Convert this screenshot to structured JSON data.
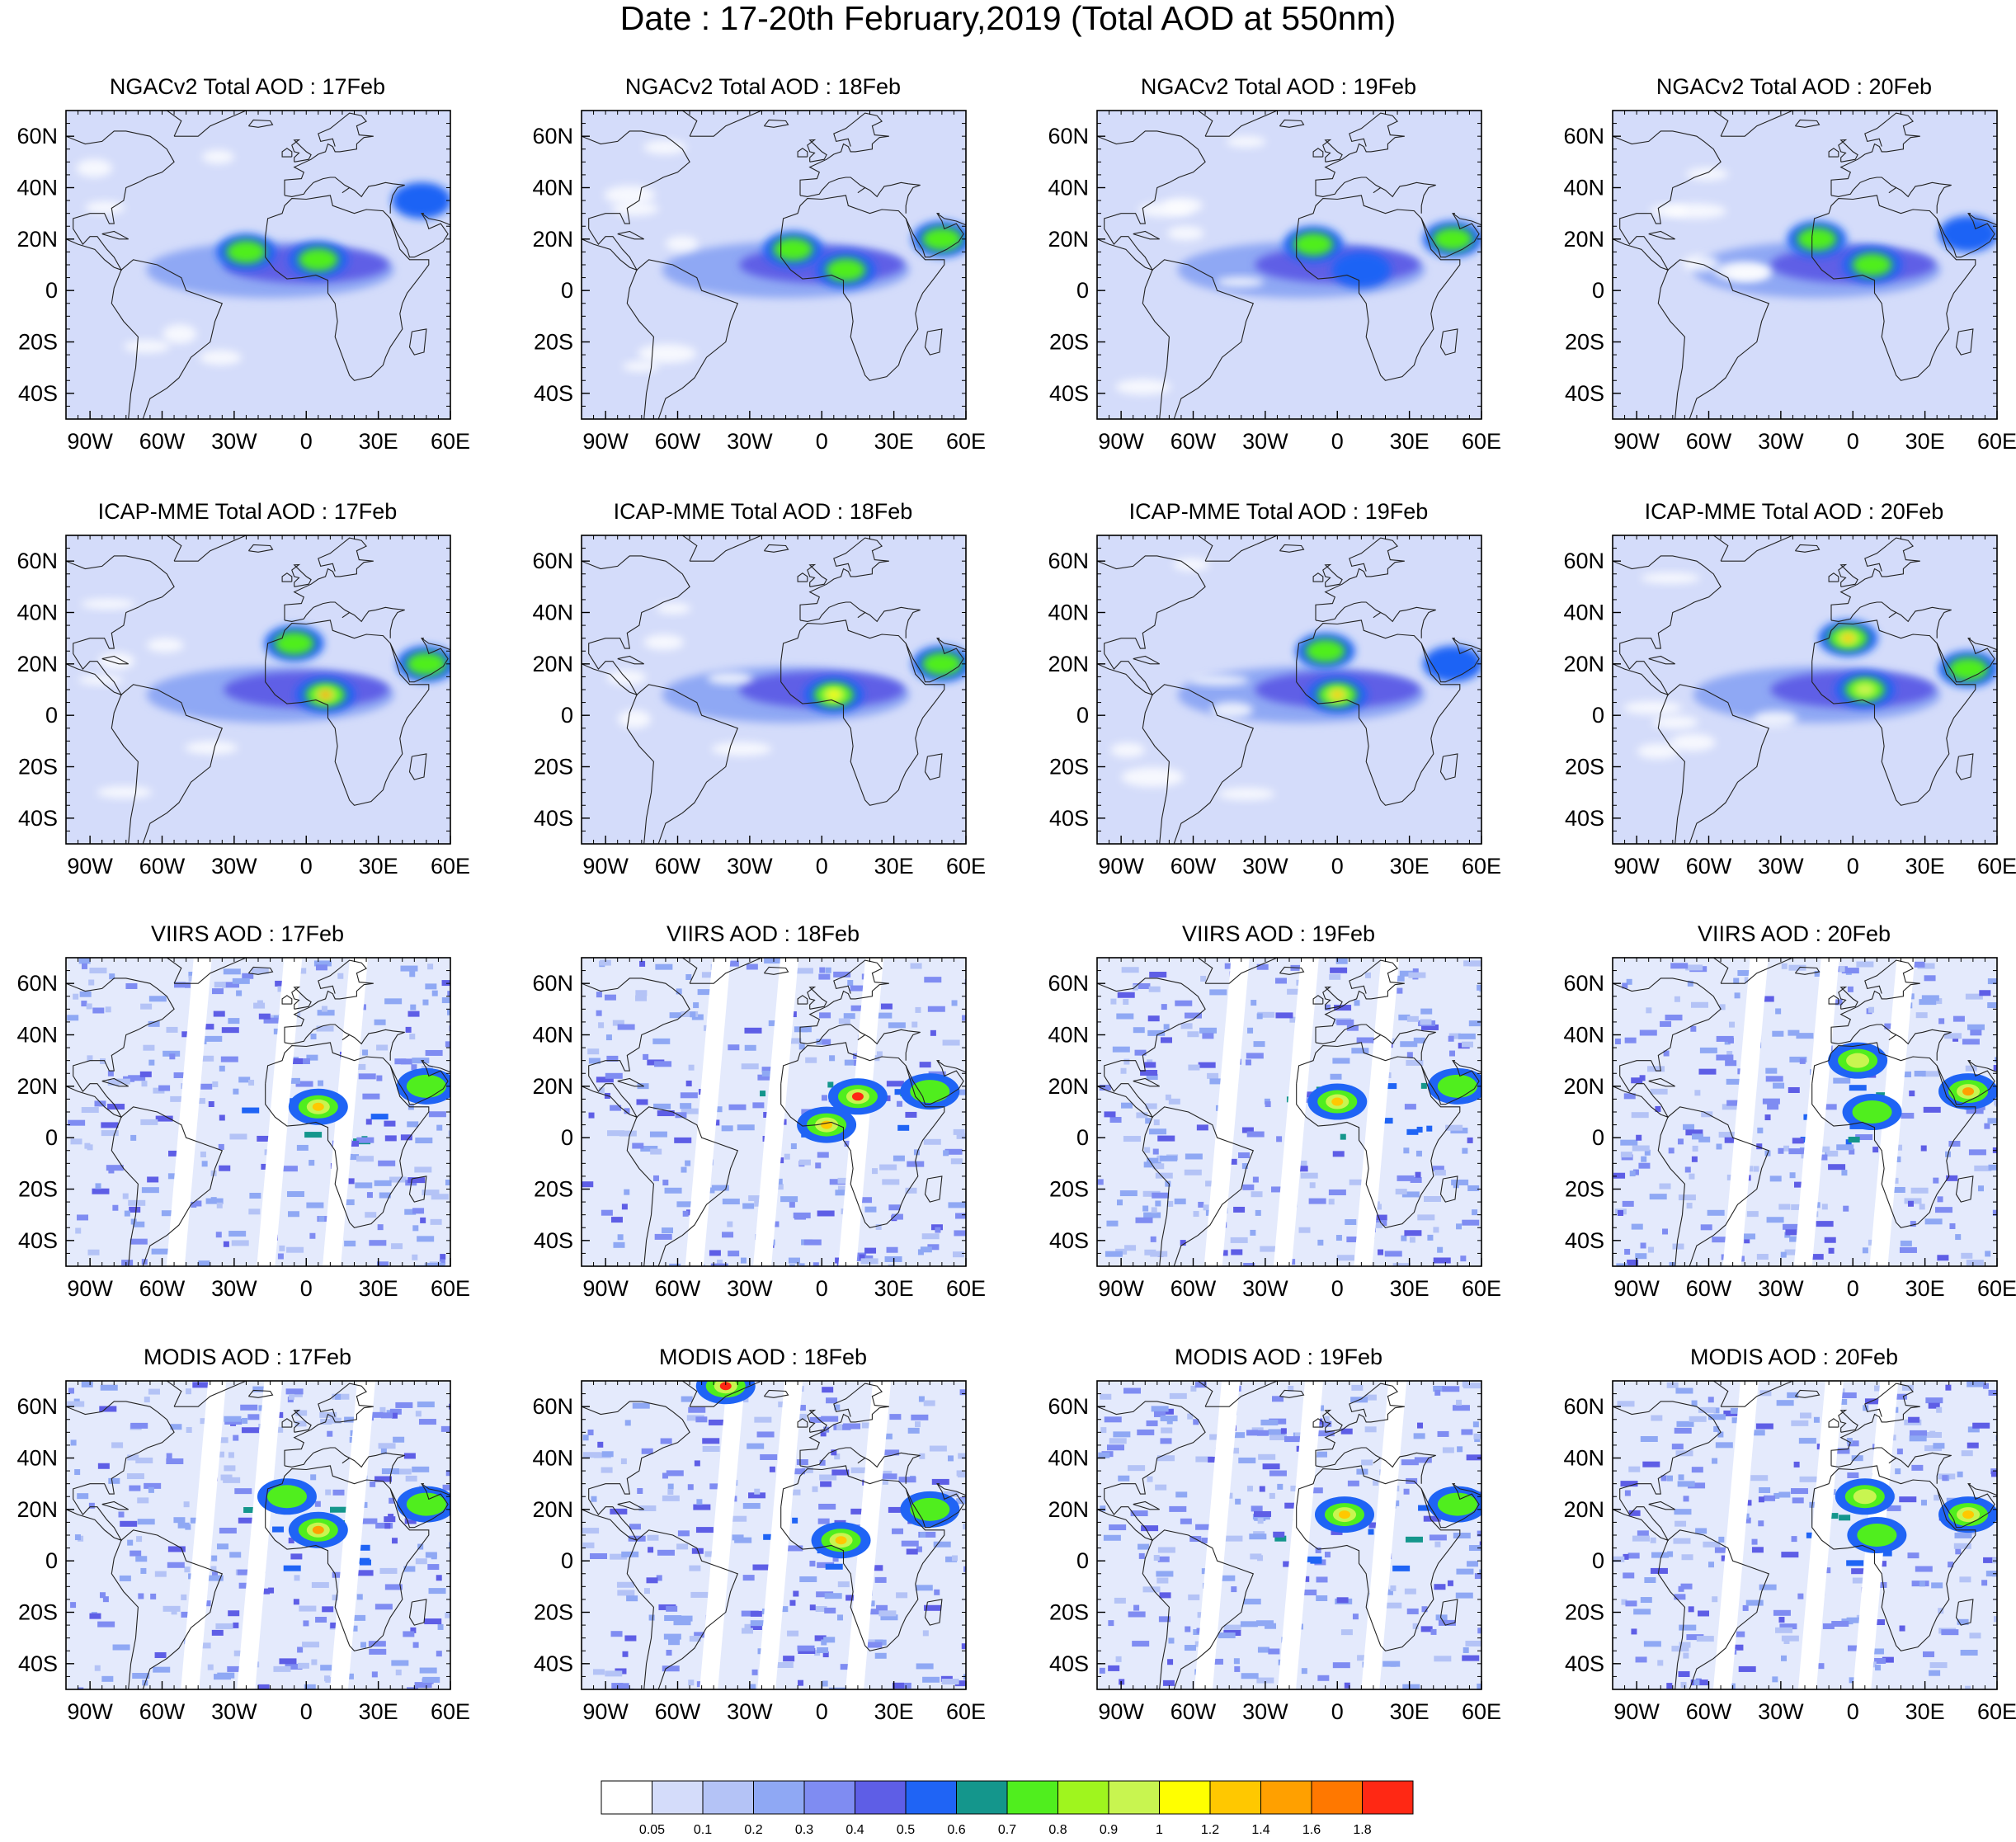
{
  "title": "Date : 17-20th February,2019 (Total AOD at 550nm)",
  "panel_titles": [
    [
      "NGACv2 Total AOD : 17Feb",
      "NGACv2 Total AOD : 18Feb",
      "NGACv2 Total AOD : 19Feb",
      "NGACv2 Total AOD : 20Feb"
    ],
    [
      "ICAP-MME Total AOD : 17Feb",
      "ICAP-MME Total AOD : 18Feb",
      "ICAP-MME Total AOD : 19Feb",
      "ICAP-MME Total AOD : 20Feb"
    ],
    [
      "VIIRS AOD : 17Feb",
      "VIIRS AOD : 18Feb",
      "VIIRS AOD : 19Feb",
      "VIIRS AOD : 20Feb"
    ],
    [
      "MODIS AOD : 17Feb",
      "MODIS AOD : 18Feb",
      "MODIS AOD : 19Feb",
      "MODIS AOD : 20Feb"
    ]
  ],
  "map": {
    "lon_range": [
      -100,
      60
    ],
    "lat_range": [
      -50,
      70
    ],
    "lon_ticks": [
      -90,
      -60,
      -30,
      0,
      30,
      60
    ],
    "lon_tick_labels": [
      "90W",
      "60W",
      "30W",
      "0",
      "30E",
      "60E"
    ],
    "lat_ticks": [
      60,
      40,
      20,
      0,
      -20,
      -40
    ],
    "lat_tick_labels": [
      "60N",
      "40N",
      "20N",
      "0",
      "20S",
      "40S"
    ]
  },
  "colorbar": {
    "colors": [
      "#ffffff",
      "#d4dcfa",
      "#b4c3f6",
      "#8fa8f4",
      "#7f8cf2",
      "#5e5ee6",
      "#1f64f5",
      "#14968c",
      "#50ee1e",
      "#9ff51e",
      "#c8f550",
      "#ffff00",
      "#ffc800",
      "#ffa000",
      "#ff7800",
      "#ff2814"
    ],
    "labels": [
      "0.05",
      "0.1",
      "0.2",
      "0.3",
      "0.4",
      "0.5",
      "0.6",
      "0.7",
      "0.8",
      "0.9",
      "1",
      "1.2",
      "1.4",
      "1.6",
      "1.8"
    ]
  },
  "chart_data": {
    "type": "heatmap",
    "variable": "Total AOD at 550nm",
    "dates": [
      "17Feb",
      "18Feb",
      "19Feb",
      "20Feb"
    ],
    "sources": [
      "NGACv2",
      "ICAP-MME",
      "VIIRS",
      "MODIS"
    ],
    "aod_features": [
      [
        [
          {
            "lon": -25,
            "lat": 15,
            "v": 0.85
          },
          {
            "lon": 5,
            "lat": 12,
            "v": 0.8
          },
          {
            "lon": 48,
            "lat": 35,
            "v": 0.5
          }
        ],
        [
          {
            "lon": -12,
            "lat": 16,
            "v": 0.7
          },
          {
            "lon": 10,
            "lat": 8,
            "v": 0.75
          },
          {
            "lon": 50,
            "lat": 20,
            "v": 0.7
          }
        ],
        [
          {
            "lon": -10,
            "lat": 18,
            "v": 0.7
          },
          {
            "lon": 10,
            "lat": 8,
            "v": 0.65
          },
          {
            "lon": 48,
            "lat": 20,
            "v": 0.7
          }
        ],
        [
          {
            "lon": -15,
            "lat": 20,
            "v": 0.75
          },
          {
            "lon": 8,
            "lat": 10,
            "v": 0.7
          },
          {
            "lon": 48,
            "lat": 22,
            "v": 0.6
          }
        ]
      ],
      [
        [
          {
            "lon": 8,
            "lat": 8,
            "v": 1.4
          },
          {
            "lon": -5,
            "lat": 28,
            "v": 0.75
          },
          {
            "lon": 50,
            "lat": 20,
            "v": 0.7
          }
        ],
        [
          {
            "lon": 5,
            "lat": 8,
            "v": 1.1
          },
          {
            "lon": 50,
            "lat": 20,
            "v": 0.7
          }
        ],
        [
          {
            "lon": 0,
            "lat": 8,
            "v": 1.2
          },
          {
            "lon": -5,
            "lat": 25,
            "v": 0.75
          },
          {
            "lon": 48,
            "lat": 20,
            "v": 0.6
          }
        ],
        [
          {
            "lon": -2,
            "lat": 30,
            "v": 1.2
          },
          {
            "lon": 5,
            "lat": 10,
            "v": 1.0
          },
          {
            "lon": 48,
            "lat": 18,
            "v": 0.7
          }
        ]
      ],
      [
        [
          {
            "lon": 5,
            "lat": 12,
            "v": 1.3
          },
          {
            "lon": 50,
            "lat": 20,
            "v": 0.7
          }
        ],
        [
          {
            "lon": 2,
            "lat": 5,
            "v": 1.2
          },
          {
            "lon": 15,
            "lat": 16,
            "v": 1.8
          },
          {
            "lon": 45,
            "lat": 18,
            "v": 0.7
          }
        ],
        [
          {
            "lon": 0,
            "lat": 14,
            "v": 1.2
          },
          {
            "lon": 50,
            "lat": 20,
            "v": 0.7
          }
        ],
        [
          {
            "lon": 2,
            "lat": 30,
            "v": 1.0
          },
          {
            "lon": 48,
            "lat": 18,
            "v": 1.4
          },
          {
            "lon": 8,
            "lat": 10,
            "v": 0.8
          }
        ]
      ],
      [
        [
          {
            "lon": 5,
            "lat": 12,
            "v": 1.5
          },
          {
            "lon": -8,
            "lat": 25,
            "v": 0.7
          },
          {
            "lon": 50,
            "lat": 22,
            "v": 0.7
          }
        ],
        [
          {
            "lon": 8,
            "lat": 8,
            "v": 1.3
          },
          {
            "lon": 45,
            "lat": 20,
            "v": 0.7
          },
          {
            "lon": -40,
            "lat": 68,
            "v": 1.8
          }
        ],
        [
          {
            "lon": 3,
            "lat": 18,
            "v": 1.2
          },
          {
            "lon": 50,
            "lat": 22,
            "v": 0.8
          }
        ],
        [
          {
            "lon": 5,
            "lat": 25,
            "v": 0.9
          },
          {
            "lon": 48,
            "lat": 18,
            "v": 1.2
          },
          {
            "lon": 10,
            "lat": 10,
            "v": 0.8
          }
        ]
      ]
    ]
  }
}
